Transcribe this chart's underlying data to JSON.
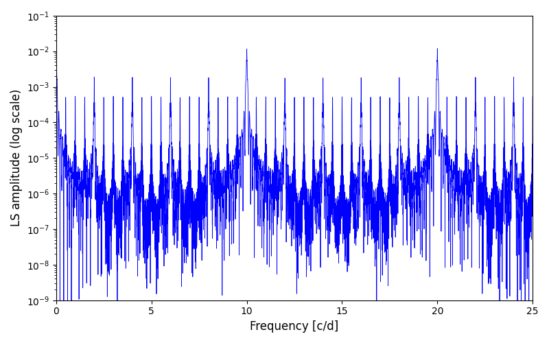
{
  "xlabel": "Frequency [c/d]",
  "ylabel": "LS amplitude (log scale)",
  "xlim": [
    0,
    25
  ],
  "ylim": [
    1e-09,
    0.1
  ],
  "line_color": "#0000ff",
  "line_width": 0.6,
  "background_color": "#ffffff",
  "figsize": [
    8.0,
    5.0
  ],
  "dpi": 100,
  "freq_max": 25.0,
  "n_points": 8000,
  "seed": 42
}
